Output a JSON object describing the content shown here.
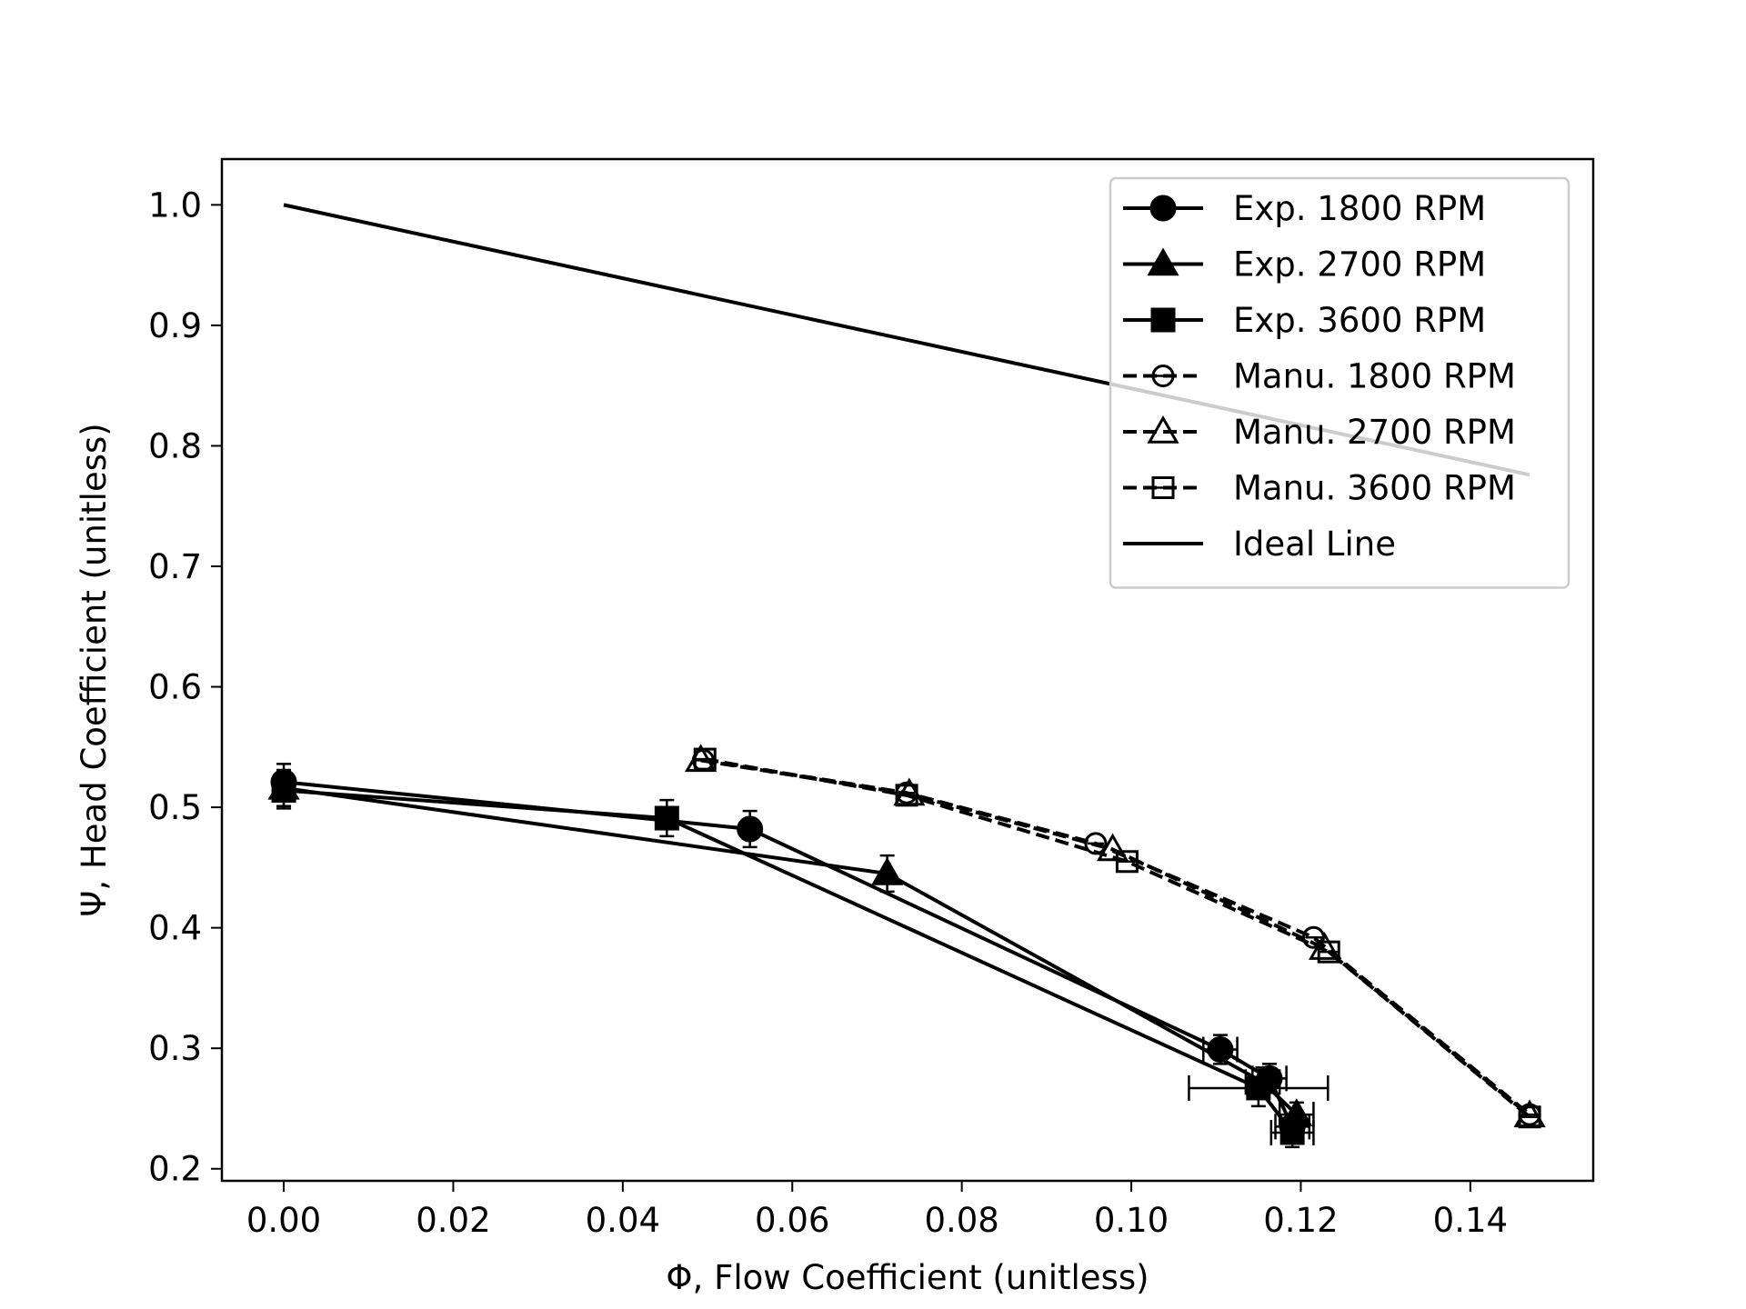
{
  "chart_data": {
    "type": "line",
    "title": "",
    "xlabel": "Φ, Flow Coefficient (unitless)",
    "ylabel": "Ψ, Head Coefficient (unitless)",
    "xlim": [
      -0.0073,
      0.1545
    ],
    "ylim": [
      0.19,
      1.038
    ],
    "xticks": [
      0.0,
      0.02,
      0.04,
      0.06,
      0.08,
      0.1,
      0.12,
      0.14
    ],
    "xtick_labels": [
      "0.00",
      "0.02",
      "0.04",
      "0.06",
      "0.08",
      "0.10",
      "0.12",
      "0.14"
    ],
    "yticks": [
      0.2,
      0.3,
      0.4,
      0.5,
      0.6,
      0.7,
      0.8,
      0.9,
      1.0
    ],
    "ytick_labels": [
      "0.2",
      "0.3",
      "0.4",
      "0.5",
      "0.6",
      "0.7",
      "0.8",
      "0.9",
      "1.0"
    ],
    "grid": false,
    "legend_position": "top-right",
    "series": [
      {
        "name": "Exp. 1800 RPM",
        "marker": "circle",
        "filled": true,
        "dash": "solid",
        "x": [
          0.0,
          0.055,
          0.1105,
          0.1163,
          0.119
        ],
        "y": [
          0.521,
          0.482,
          0.299,
          0.275,
          0.235
        ],
        "xerr": [
          0,
          0,
          0.002,
          0.002,
          0.002
        ],
        "yerr": [
          0.015,
          0.015,
          0.012,
          0.012,
          0.01
        ]
      },
      {
        "name": "Exp. 2700 RPM",
        "marker": "triangle",
        "filled": true,
        "dash": "solid",
        "x": [
          0.0,
          0.0712,
          0.1155,
          0.1195
        ],
        "y": [
          0.516,
          0.445,
          0.272,
          0.245
        ],
        "xerr": [
          0,
          0,
          0.002,
          0.002
        ],
        "yerr": [
          0.015,
          0.015,
          0.012,
          0.01
        ]
      },
      {
        "name": "Exp. 3600 RPM",
        "marker": "square",
        "filled": true,
        "dash": "solid",
        "x": [
          0.0,
          0.0452,
          0.115,
          0.119
        ],
        "y": [
          0.514,
          0.491,
          0.267,
          0.23
        ],
        "xerr": [
          0,
          0,
          0.0082,
          0.0025
        ],
        "yerr": [
          0.015,
          0.015,
          0.015,
          0.012
        ]
      },
      {
        "name": "Manu. 1800 RPM",
        "marker": "circle",
        "filled": false,
        "dash": "dashed",
        "x": [
          0.0495,
          0.0735,
          0.0958,
          0.1215,
          0.147
        ],
        "y": [
          0.539,
          0.512,
          0.47,
          0.392,
          0.245
        ],
        "xerr": [],
        "yerr": []
      },
      {
        "name": "Manu. 2700 RPM",
        "marker": "triangle",
        "filled": false,
        "dash": "dashed",
        "x": [
          0.0492,
          0.0738,
          0.0978,
          0.1228,
          0.147
        ],
        "y": [
          0.539,
          0.511,
          0.465,
          0.383,
          0.244
        ],
        "xerr": [],
        "yerr": []
      },
      {
        "name": "Manu. 3600 RPM",
        "marker": "square",
        "filled": false,
        "dash": "dashed",
        "x": [
          0.0497,
          0.0735,
          0.0995,
          0.1233,
          0.147
        ],
        "y": [
          0.54,
          0.51,
          0.455,
          0.38,
          0.243
        ],
        "xerr": [],
        "yerr": []
      },
      {
        "name": "Ideal Line",
        "marker": "none",
        "filled": false,
        "dash": "solid",
        "x": [
          0.0,
          0.147
        ],
        "y": [
          1.0,
          0.776
        ],
        "xerr": [],
        "yerr": []
      }
    ]
  }
}
